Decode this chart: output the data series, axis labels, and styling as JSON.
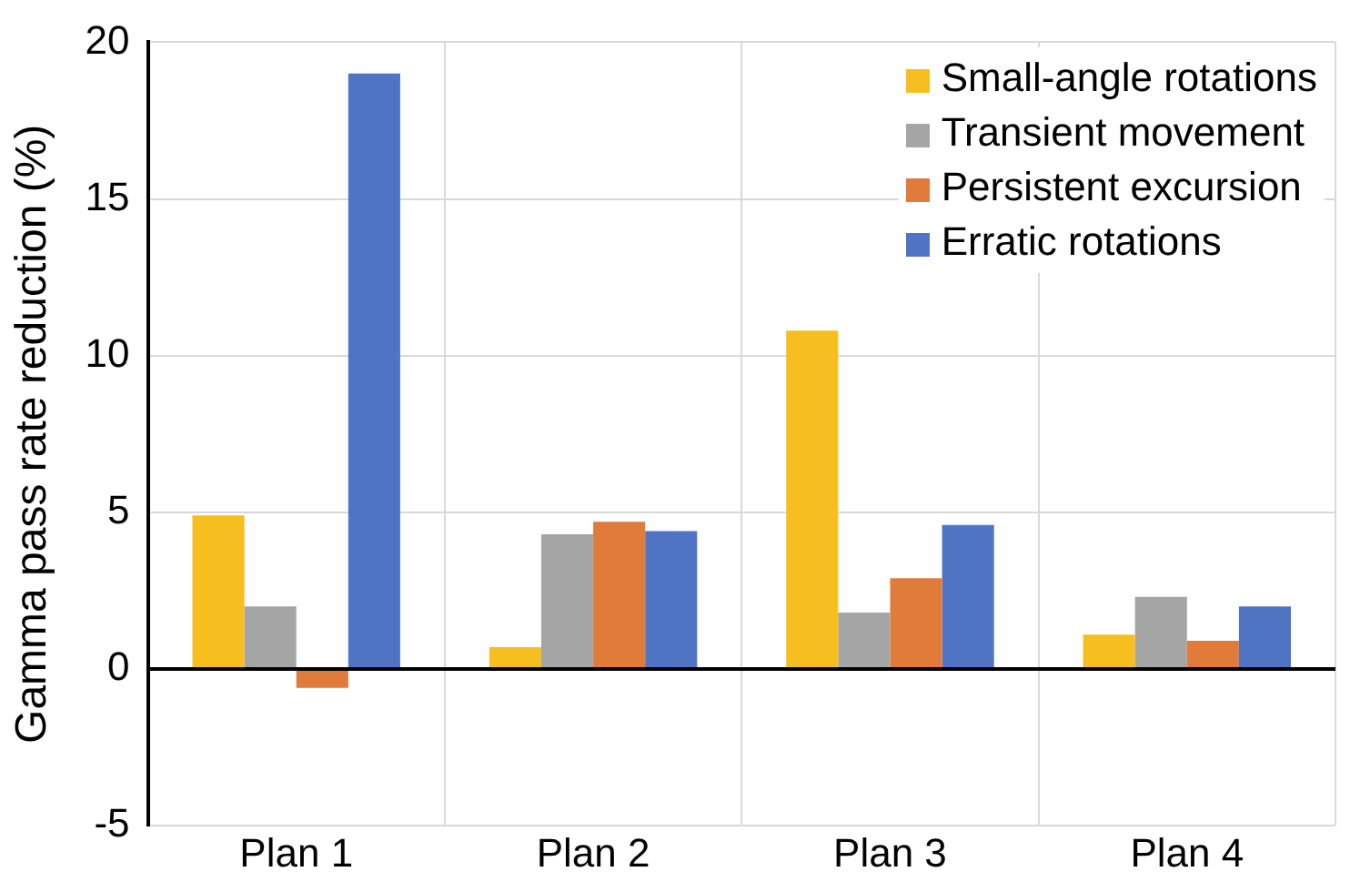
{
  "chart_data": {
    "type": "bar",
    "ylabel": "Gamma pass rate reduction (%)",
    "categories": [
      "Plan 1",
      "Plan 2",
      "Plan 3",
      "Plan 4"
    ],
    "series": [
      {
        "name": "Small-angle rotations",
        "color": "#f7be1f",
        "values": [
          4.9,
          0.7,
          10.8,
          1.1
        ]
      },
      {
        "name": "Transient movement",
        "color": "#a5a5a5",
        "values": [
          2.0,
          4.3,
          1.8,
          2.3
        ]
      },
      {
        "name": "Persistent excursion",
        "color": "#e07b39",
        "values": [
          -0.6,
          4.7,
          2.9,
          0.9
        ]
      },
      {
        "name": "Erratic rotations",
        "color": "#4f74c3",
        "values": [
          19.0,
          4.4,
          4.6,
          2.0
        ]
      }
    ],
    "ylim": [
      -5,
      20
    ],
    "yticks": [
      -5,
      0,
      5,
      10,
      15,
      20
    ],
    "grid": true,
    "legend": "top right"
  }
}
